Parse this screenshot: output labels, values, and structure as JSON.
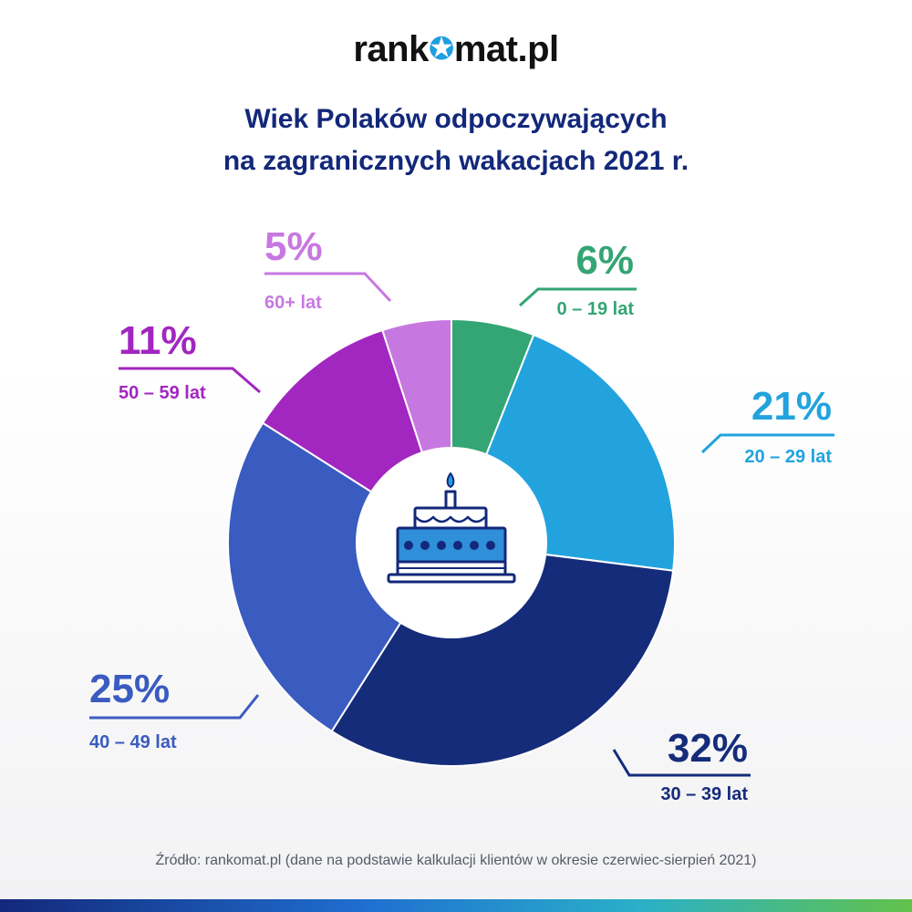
{
  "logo": {
    "before": "rank",
    "after": "mat.pl"
  },
  "title_line1": "Wiek Polaków odpoczywających",
  "title_line2": "na zagranicznych wakacjach 2021 r.",
  "source": "Źródło: rankomat.pl (dane na podstawie kalkulacji klientów w okresie czerwiec-sierpień 2021)",
  "center_icon": "birthday-cake-icon",
  "chart_data": {
    "type": "pie",
    "variant": "donut",
    "slices": [
      {
        "label": "0 – 19 lat",
        "value": 6,
        "value_label": "6%",
        "color": "#34a574"
      },
      {
        "label": "20 – 29 lat",
        "value": 21,
        "value_label": "21%",
        "color": "#22a3de"
      },
      {
        "label": "30 – 39 lat",
        "value": 32,
        "value_label": "32%",
        "color": "#152c7a"
      },
      {
        "label": "40 – 49 lat",
        "value": 25,
        "value_label": "25%",
        "color": "#3a5bbf"
      },
      {
        "label": "50 – 59 lat",
        "value": 11,
        "value_label": "11%",
        "color": "#a226c0"
      },
      {
        "label": "60+ lat",
        "value": 5,
        "value_label": "5%",
        "color": "#c778e0"
      }
    ]
  }
}
